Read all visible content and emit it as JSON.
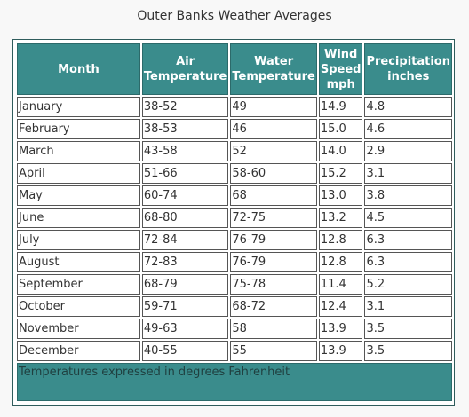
{
  "caption": "Outer Banks Weather Averages",
  "columns": {
    "month": "Month",
    "air": "Air Temperature",
    "water": "Water Temperature",
    "wind_line1": "Wind",
    "wind_line2": "Speed",
    "wind_line3": "mph",
    "precip_line1": "Precipitation",
    "precip_line2": "inches"
  },
  "rows": [
    {
      "month": "January",
      "air": "38-52",
      "water": "49",
      "wind": "14.9",
      "precip": "4.8"
    },
    {
      "month": "February",
      "air": "38-53",
      "water": "46",
      "wind": "15.0",
      "precip": "4.6"
    },
    {
      "month": "March",
      "air": "43-58",
      "water": "52",
      "wind": "14.0",
      "precip": "2.9"
    },
    {
      "month": "April",
      "air": "51-66",
      "water": "58-60",
      "wind": "15.2",
      "precip": "3.1"
    },
    {
      "month": "May",
      "air": "60-74",
      "water": "68",
      "wind": "13.0",
      "precip": "3.8"
    },
    {
      "month": "June",
      "air": "68-80",
      "water": "72-75",
      "wind": "13.2",
      "precip": "4.5"
    },
    {
      "month": "July",
      "air": "72-84",
      "water": "76-79",
      "wind": "12.8",
      "precip": "6.3"
    },
    {
      "month": "August",
      "air": "72-83",
      "water": "76-79",
      "wind": "12.8",
      "precip": "6.3"
    },
    {
      "month": "September",
      "air": "68-79",
      "water": "75-78",
      "wind": "11.4",
      "precip": "5.2"
    },
    {
      "month": "October",
      "air": "59-71",
      "water": "68-72",
      "wind": "12.4",
      "precip": "3.1"
    },
    {
      "month": "November",
      "air": "49-63",
      "water": "58",
      "wind": "13.9",
      "precip": "3.5"
    },
    {
      "month": "December",
      "air": "40-55",
      "water": "55",
      "wind": "13.9",
      "precip": "3.5"
    }
  ],
  "footer": "Temperatures expressed in degrees Fahrenheit"
}
